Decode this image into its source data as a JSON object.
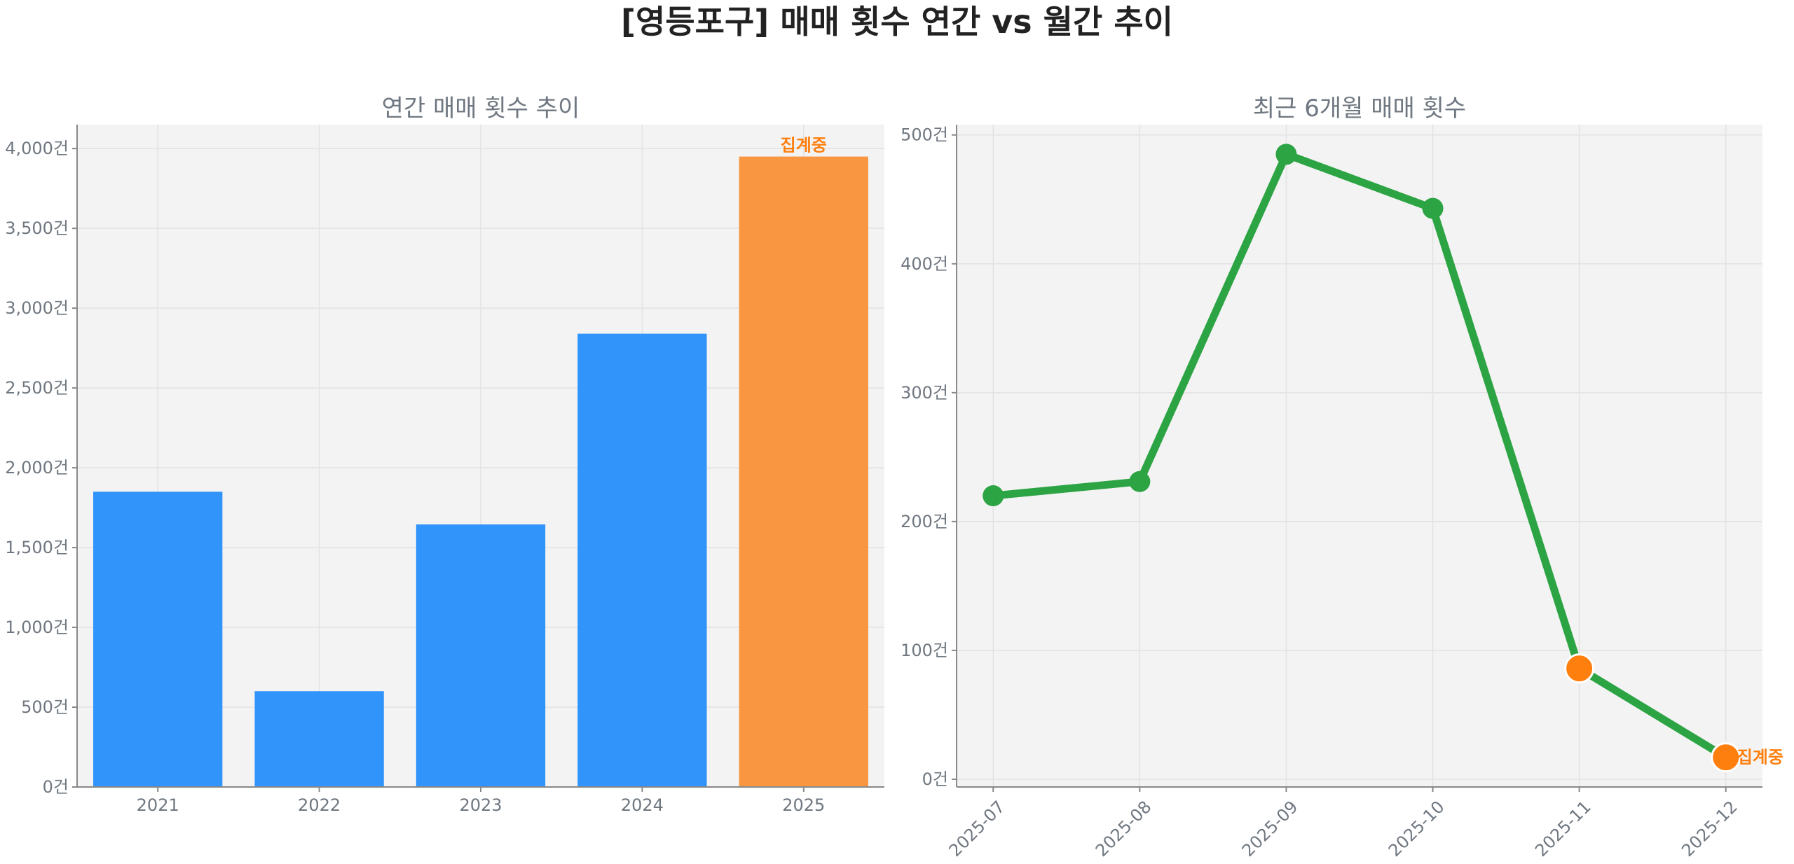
{
  "title": "[영등포구] 매매 횟수 연간 vs 월간 추이",
  "chart_data": [
    {
      "type": "bar",
      "title": "연간 매매 횟수 추이",
      "categories": [
        "2021",
        "2022",
        "2023",
        "2024",
        "2025"
      ],
      "values": [
        1850,
        600,
        1645,
        2840,
        3950
      ],
      "ylim": [
        0,
        4150
      ],
      "yticks": [
        0,
        500,
        1000,
        1500,
        2000,
        2500,
        3000,
        3500,
        4000
      ],
      "ytick_labels": [
        "0건",
        "500건",
        "1,000건",
        "1,500건",
        "2,000건",
        "2,500건",
        "3,000건",
        "3,500건",
        "4,000건"
      ],
      "bar_colors": [
        "#3094fa",
        "#3094fa",
        "#3094fa",
        "#3094fa",
        "#f99641"
      ],
      "annotation": "집계중",
      "annotation_index": 4,
      "grid": true
    },
    {
      "type": "line",
      "title": "최근 6개월 매매 횟수",
      "x": [
        "2025-07",
        "2025-08",
        "2025-09",
        "2025-10",
        "2025-11",
        "2025-12"
      ],
      "values": [
        220,
        231,
        485,
        443,
        86,
        17
      ],
      "ylim": [
        -6,
        508
      ],
      "yticks": [
        0,
        100,
        200,
        300,
        400,
        500
      ],
      "ytick_labels": [
        "0건",
        "100건",
        "200건",
        "300건",
        "400건",
        "500건"
      ],
      "line_color": "#2ca444",
      "marker_colors": [
        "#2ca444",
        "#2ca444",
        "#2ca444",
        "#2ca444",
        "#ff7f0e",
        "#ff7f0e"
      ],
      "annotation": "집계중",
      "annotation_index": 5,
      "grid": true
    }
  ],
  "colors": {
    "plot_bg": "#f3f3f3",
    "text": "#6f7780",
    "accent": "#ff7f0e"
  }
}
